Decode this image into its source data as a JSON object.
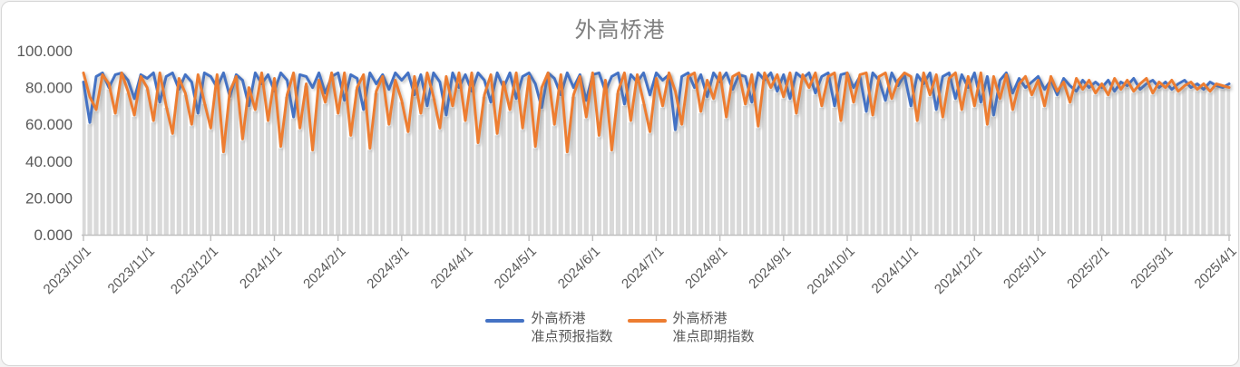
{
  "chart": {
    "title": "外高桥港"
  },
  "chart_data": {
    "type": "line",
    "title": "外高桥港",
    "xlabel": "",
    "ylabel": "",
    "ylim": [
      0,
      100
    ],
    "y_tick_values": [
      0,
      20,
      40,
      60,
      80,
      100
    ],
    "y_tick_labels": [
      "0.000",
      "20.000",
      "40.000",
      "60.000",
      "80.000",
      "100.000"
    ],
    "x_tick_labels": [
      "2023/10/1",
      "2023/11/1",
      "2023/12/1",
      "2024/1/1",
      "2024/2/1",
      "2024/3/1",
      "2024/4/1",
      "2024/5/1",
      "2024/6/1",
      "2024/7/1",
      "2024/8/1",
      "2024/9/1",
      "2024/10/1",
      "2024/11/1",
      "2024/12/1",
      "2025/1/1",
      "2025/2/1",
      "2025/3/1",
      "2025/4/1"
    ],
    "x_start": "2023/10/1",
    "x_end": "2025/4/1",
    "sampling_interval_days": 3,
    "grid": false,
    "legend_position": "bottom-center",
    "background_bar_color": "#d9d9d9",
    "axis_color": "#bfbfbf",
    "tick_text_color": "#595959",
    "title_color": "#7f7f7f",
    "series": [
      {
        "name": "外高桥港准点预报指数",
        "label_lines": [
          "外高桥港",
          "准点预报指数"
        ],
        "color": "#4472c4",
        "values": [
          83,
          61,
          86,
          88,
          80,
          87,
          88,
          84,
          74,
          87,
          85,
          88,
          72,
          86,
          88,
          79,
          87,
          83,
          66,
          88,
          86,
          80,
          88,
          75,
          87,
          84,
          70,
          88,
          82,
          87,
          78,
          88,
          84,
          64,
          87,
          86,
          80,
          88,
          77,
          86,
          88,
          73,
          87,
          85,
          68,
          88,
          82,
          87,
          79,
          88,
          84,
          88,
          76,
          87,
          70,
          88,
          83,
          65,
          88,
          80,
          87,
          78,
          88,
          84,
          72,
          88,
          80,
          88,
          74,
          86,
          88,
          82,
          69,
          88,
          85,
          76,
          88,
          80,
          87,
          73,
          87,
          88,
          78,
          86,
          88,
          71,
          87,
          83,
          88,
          76,
          88,
          84,
          87,
          57,
          86,
          88,
          80,
          87,
          75,
          88,
          83,
          88,
          79,
          87,
          86,
          72,
          88,
          84,
          88,
          78,
          87,
          74,
          88,
          85,
          88,
          77,
          86,
          88,
          70,
          87,
          88,
          80,
          86,
          67,
          88,
          84,
          73,
          88,
          81,
          87,
          70,
          87,
          82,
          88,
          68,
          86,
          88,
          74,
          87,
          80,
          88,
          72,
          86,
          65,
          84,
          88,
          77,
          85,
          80,
          83,
          86,
          79,
          84,
          76,
          85,
          81,
          78,
          84,
          80,
          83,
          80,
          84,
          78,
          83,
          81,
          85,
          79,
          82,
          84,
          80,
          83,
          79,
          82,
          84,
          80,
          82,
          79,
          83,
          81,
          80,
          82
        ]
      },
      {
        "name": "外高桥港准点即期指数",
        "label_lines": [
          "外高桥港",
          "准点即期指数"
        ],
        "color": "#ed7d31",
        "values": [
          88,
          75,
          68,
          87,
          82,
          66,
          88,
          78,
          65,
          86,
          80,
          62,
          88,
          70,
          55,
          85,
          77,
          60,
          87,
          72,
          58,
          87,
          45,
          78,
          86,
          52,
          80,
          68,
          88,
          62,
          85,
          48,
          76,
          88,
          58,
          82,
          46,
          84,
          72,
          88,
          66,
          88,
          54,
          80,
          87,
          47,
          78,
          86,
          60,
          84,
          73,
          56,
          86,
          66,
          88,
          75,
          58,
          86,
          70,
          88,
          62,
          88,
          50,
          76,
          87,
          55,
          83,
          68,
          88,
          58,
          86,
          48,
          80,
          88,
          60,
          87,
          45,
          76,
          86,
          64,
          88,
          54,
          84,
          46,
          78,
          88,
          62,
          87,
          72,
          56,
          85,
          70,
          88,
          78,
          60,
          86,
          88,
          67,
          84,
          74,
          88,
          64,
          86,
          88,
          71,
          87,
          59,
          88,
          80,
          87,
          75,
          88,
          66,
          87,
          80,
          88,
          70,
          86,
          88,
          62,
          88,
          72,
          87,
          88,
          65,
          86,
          88,
          74,
          84,
          88,
          86,
          62,
          88,
          76,
          87,
          64,
          85,
          88,
          68,
          86,
          70,
          88,
          60,
          86,
          74,
          87,
          68,
          82,
          86,
          76,
          84,
          70,
          86,
          78,
          83,
          72,
          85,
          79,
          84,
          77,
          82,
          76,
          85,
          79,
          84,
          78,
          82,
          85,
          77,
          83,
          80,
          84,
          78,
          81,
          83,
          79,
          82,
          78,
          82,
          81,
          80
        ]
      }
    ]
  }
}
